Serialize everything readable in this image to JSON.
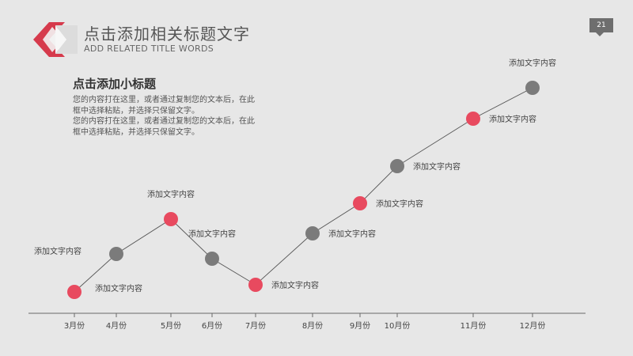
{
  "header": {
    "title": "点击添加相关标题文字",
    "subtitle": "ADD RELATED TITLE WORDS",
    "page_number": "21"
  },
  "content": {
    "subheading": "点击添加小标题",
    "paragraph_lines": [
      "您的内容打在这里，或者通过复制您的文本后，在此",
      "框中选择粘贴，并选择只保留文字。",
      "您的内容打在这里，或者通过复制您的文本后，在此",
      "框中选择粘贴，并选择只保留文字。"
    ]
  },
  "colors": {
    "accent_red": "#e84a5f",
    "point_gray": "#7b7b7b",
    "line": "#555555",
    "background": "#e7e7e7"
  },
  "chart_data": {
    "type": "line",
    "categories": [
      "3月份",
      "4月份",
      "5月份",
      "6月份",
      "7月份",
      "8月份",
      "9月份",
      "10月份",
      "11月份",
      "12月份"
    ],
    "point_labels": [
      "添加文字内容",
      "添加文字内容",
      "添加文字内容",
      "添加文字内容",
      "添加文字内容",
      "添加文字内容",
      "添加文字内容",
      "添加文字内容",
      "添加文字内容",
      "添加文字内容"
    ],
    "point_colors": [
      "red",
      "gray",
      "red",
      "gray",
      "red",
      "gray",
      "red",
      "gray",
      "red",
      "gray"
    ],
    "label_positions": [
      "right",
      "left",
      "above",
      "above",
      "right",
      "right",
      "right",
      "right",
      "right",
      "above"
    ],
    "grid": false,
    "legend": "none"
  }
}
